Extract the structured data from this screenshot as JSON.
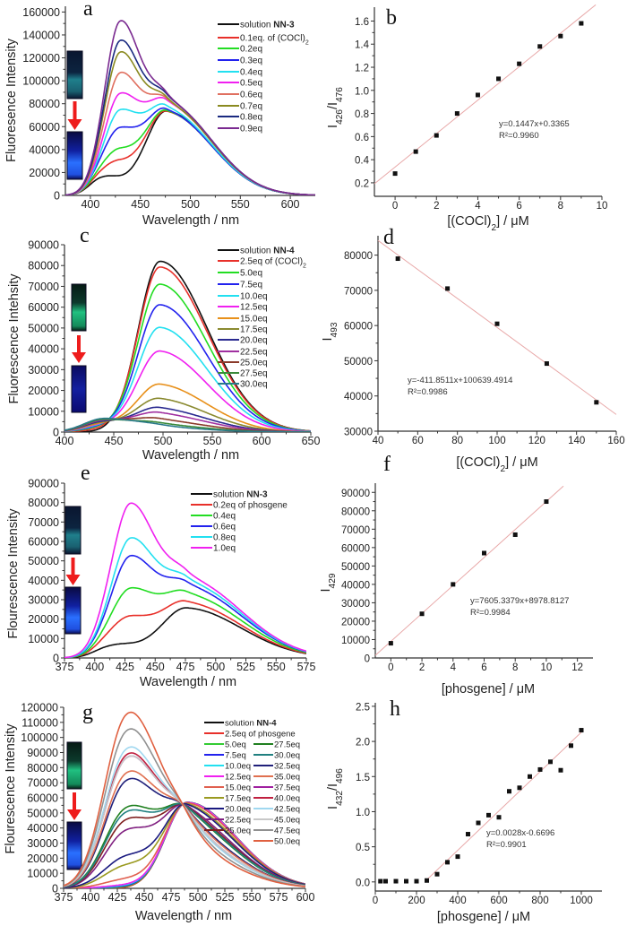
{
  "chart_data": [
    {
      "id": "a",
      "panel_label": "a",
      "type": "line",
      "xlabel": [
        {
          "t": "Wavelength / nm"
        }
      ],
      "ylabel": [
        {
          "t": "Fluoresence Intensity"
        }
      ],
      "xlim": [
        375,
        625
      ],
      "ylim": [
        0,
        165000
      ],
      "xticks": [
        "400",
        "450",
        "500",
        "550",
        "600"
      ],
      "yticks": [
        "0",
        "20000",
        "40000",
        "60000",
        "80000",
        "100000",
        "120000",
        "140000",
        "160000"
      ],
      "basis": [
        {
          "center": 430,
          "sigma_left": 15,
          "sigma_right": 20
        },
        {
          "center": 476,
          "sigma_left": 20,
          "sigma_right": 45
        },
        {
          "center": 410,
          "sigma_left": 12,
          "sigma_right": 14
        }
      ],
      "series": [
        {
          "name": "solution ",
          "bold": "NN-3",
          "color": "#111111",
          "weights": [
            8000,
            73000,
            12000
          ]
        },
        {
          "name": "0.1eq. of (COCl)",
          "sub": "2",
          "color": "#e8302a",
          "weights": [
            22000,
            72000,
            12000
          ]
        },
        {
          "name": "0.2eq",
          "color": "#22dd22",
          "weights": [
            32000,
            72000,
            12000
          ]
        },
        {
          "name": "0.3eq",
          "color": "#2222ee",
          "weights": [
            50000,
            72000,
            12000
          ]
        },
        {
          "name": "0.4eq",
          "color": "#22e0f0",
          "weights": [
            66000,
            74000,
            10000
          ]
        },
        {
          "name": "0.5eq",
          "color": "#f020f0",
          "weights": [
            80000,
            78000,
            10000
          ]
        },
        {
          "name": "0.6eq",
          "color": "#e07060",
          "weights": [
            98000,
            78000,
            10000
          ]
        },
        {
          "name": "0.7eq",
          "color": "#8a8a20",
          "weights": [
            116000,
            78000,
            10000
          ]
        },
        {
          "name": "0.8eq",
          "color": "#1a2a80",
          "weights": [
            126000,
            80000,
            10000
          ]
        },
        {
          "name": "0.9eq",
          "color": "#7a2a90",
          "weights": [
            143000,
            80000,
            10000
          ]
        }
      ]
    },
    {
      "id": "b",
      "panel_label": "b",
      "type": "scatter",
      "xlabel": [
        {
          "t": "[(COCl)"
        },
        {
          "t": "2",
          "sub": true
        },
        {
          "t": "] / μM"
        }
      ],
      "ylabel": [
        {
          "t": "I"
        },
        {
          "t": "426",
          "sub": true
        },
        {
          "t": "/I"
        },
        {
          "t": "476",
          "sub": true
        }
      ],
      "xlim": [
        -1,
        10
      ],
      "ylim": [
        0.083,
        1.72
      ],
      "xticks": [
        "0",
        "2",
        "4",
        "6",
        "8",
        "10"
      ],
      "yticks": [
        "0.2",
        "0.4",
        "0.6",
        "0.8",
        "1.0",
        "1.2",
        "1.4",
        "1.6"
      ],
      "x": [
        0,
        1,
        2,
        3,
        4,
        5,
        6,
        7,
        8,
        9
      ],
      "y": [
        0.28,
        0.47,
        0.61,
        0.8,
        0.96,
        1.1,
        1.23,
        1.38,
        1.47,
        1.58
      ],
      "fit": {
        "slope": 0.1447,
        "intercept": 0.3365,
        "x_range": [
          -1,
          9.7
        ]
      },
      "equation": "y=0.1447x+0.3365",
      "r2": "R²=0.9960"
    },
    {
      "id": "c",
      "panel_label": "c",
      "type": "line",
      "xlabel": [
        {
          "t": "Wavelength / nm"
        }
      ],
      "ylabel": [
        {
          "t": "Fluorescence Intehsity"
        }
      ],
      "xlim": [
        400,
        650
      ],
      "ylim": [
        0,
        90000
      ],
      "xticks": [
        "400",
        "450",
        "500",
        "550",
        "600",
        "650"
      ],
      "yticks": [
        "0",
        "10000",
        "20000",
        "30000",
        "40000",
        "50000",
        "60000",
        "70000",
        "80000",
        "90000"
      ],
      "basis": [
        {
          "center": 497,
          "sigma_left": 22,
          "sigma_right": 48
        },
        {
          "center": 440,
          "sigma_left": 20,
          "sigma_right": 35
        }
      ],
      "series": [
        {
          "name": "solution ",
          "bold": "NN-4",
          "color": "#111111",
          "weights": [
            82000,
            0
          ]
        },
        {
          "name": "2.5eq of (COCl)",
          "sub": "2",
          "color": "#e8302a",
          "weights": [
            79000,
            1000
          ]
        },
        {
          "name": "5.0eq",
          "color": "#22dd22",
          "weights": [
            70500,
            2000
          ]
        },
        {
          "name": "7.5eq",
          "color": "#2222ee",
          "weights": [
            60500,
            2500
          ]
        },
        {
          "name": "10.0eq",
          "color": "#22e0f0",
          "weights": [
            49500,
            3000
          ]
        },
        {
          "name": "12.5eq",
          "color": "#f020f0",
          "weights": [
            38000,
            3500
          ]
        },
        {
          "name": "15.0eq",
          "color": "#e8901a",
          "weights": [
            22000,
            4000
          ]
        },
        {
          "name": "17.5eq",
          "color": "#8a8a30",
          "weights": [
            15000,
            4500
          ]
        },
        {
          "name": "20.0eq",
          "color": "#2a2a90",
          "weights": [
            10500,
            5000
          ]
        },
        {
          "name": "22.5eq",
          "color": "#a030a0",
          "weights": [
            8000,
            5500
          ]
        },
        {
          "name": "25.0eq",
          "color": "#8b3a2a",
          "weights": [
            5000,
            6000
          ]
        },
        {
          "name": "27.5eq",
          "color": "#3a8a3a",
          "weights": [
            3000,
            6000
          ]
        },
        {
          "name": "30.0eq",
          "color": "#2a7a8a",
          "weights": [
            2000,
            6500
          ]
        }
      ]
    },
    {
      "id": "d",
      "panel_label": "d",
      "type": "scatter",
      "xlabel": [
        {
          "t": "[(COCl)"
        },
        {
          "t": "2",
          "sub": true
        },
        {
          "t": "] / μM"
        }
      ],
      "ylabel": [
        {
          "t": "I"
        },
        {
          "t": "493",
          "sub": true
        }
      ],
      "xlim": [
        40,
        160
      ],
      "ylim": [
        30000,
        85500
      ],
      "xticks": [
        "40",
        "60",
        "80",
        "100",
        "120",
        "140",
        "160"
      ],
      "yticks": [
        "30000",
        "40000",
        "50000",
        "60000",
        "70000",
        "80000"
      ],
      "x": [
        50,
        75,
        100,
        125,
        150
      ],
      "y": [
        79000,
        70500,
        60500,
        49200,
        38200
      ],
      "fit": {
        "slope": -411.8511,
        "intercept": 100639.4914,
        "x_range": [
          40,
          160
        ]
      },
      "equation": "y=-411.8511x+100639.4914",
      "r2": "R²=0.9986"
    },
    {
      "id": "e",
      "panel_label": "e",
      "type": "line",
      "xlabel": [
        {
          "t": "Wavelength / nm"
        }
      ],
      "ylabel": [
        {
          "t": "Flourescence Intensity"
        }
      ],
      "xlim": [
        375,
        575
      ],
      "ylim": [
        0,
        90000
      ],
      "xticks": [
        "375",
        "400",
        "425",
        "450",
        "475",
        "500",
        "525",
        "550",
        "575"
      ],
      "yticks": [
        "0",
        "10000",
        "20000",
        "30000",
        "40000",
        "50000",
        "60000",
        "70000",
        "80000",
        "90000"
      ],
      "basis": [
        {
          "center": 430,
          "sigma_left": 15,
          "sigma_right": 20
        },
        {
          "center": 476,
          "sigma_left": 20,
          "sigma_right": 45
        },
        {
          "center": 410,
          "sigma_left": 12,
          "sigma_right": 14
        }
      ],
      "series": [
        {
          "name": "solution ",
          "bold": "NN-3",
          "color": "#111111",
          "weights": [
            4500,
            25500,
            4000
          ]
        },
        {
          "name": "0.2eq of phosgene",
          "color": "#e8302a",
          "weights": [
            18000,
            28000,
            5000
          ]
        },
        {
          "name": "0.4eq",
          "color": "#22dd22",
          "weights": [
            32000,
            32000,
            5000
          ]
        },
        {
          "name": "0.6eq",
          "color": "#2222ee",
          "weights": [
            48000,
            36000,
            6000
          ]
        },
        {
          "name": "0.8eq",
          "color": "#22e0f0",
          "weights": [
            57000,
            38000,
            6000
          ]
        },
        {
          "name": "1.0eq",
          "color": "#f020f0",
          "weights": [
            74000,
            40000,
            8000
          ]
        }
      ]
    },
    {
      "id": "f",
      "panel_label": "f",
      "type": "scatter",
      "xlabel": [
        {
          "t": "[phosgene] / μM"
        }
      ],
      "ylabel": [
        {
          "t": "I"
        },
        {
          "t": "429",
          "sub": true
        }
      ],
      "xlim": [
        -1,
        13
      ],
      "ylim": [
        0,
        95000
      ],
      "xticks": [
        "0",
        "2",
        "4",
        "6",
        "8",
        "10",
        "12"
      ],
      "yticks": [
        "0",
        "10000",
        "20000",
        "30000",
        "40000",
        "50000",
        "60000",
        "70000",
        "80000",
        "90000"
      ],
      "x": [
        0,
        2,
        4,
        6,
        8,
        10
      ],
      "y": [
        8000,
        24000,
        40000,
        57000,
        67000,
        85000
      ],
      "fit": {
        "slope": 7605.3379,
        "intercept": 8978.8127,
        "x_range": [
          -1,
          11.1
        ]
      },
      "equation": "y=7605.3379x+8978.8127",
      "r2": "R²=0.9984"
    },
    {
      "id": "g",
      "panel_label": "g",
      "type": "line",
      "xlabel": [
        {
          "t": "Wavelength / nm"
        }
      ],
      "ylabel": [
        {
          "t": "Flourescence Intensity"
        }
      ],
      "xlim": [
        375,
        600
      ],
      "ylim": [
        0,
        120000
      ],
      "xticks": [
        "375",
        "400",
        "425",
        "450",
        "475",
        "500",
        "525",
        "550",
        "575",
        "600"
      ],
      "yticks": [
        "0",
        "10000",
        "20000",
        "30000",
        "40000",
        "50000",
        "60000",
        "70000",
        "80000",
        "90000",
        "100000",
        "110000",
        "120000"
      ],
      "basis": [
        {
          "center": 432,
          "sigma_left": 20,
          "sigma_right": 22
        },
        {
          "center": 465,
          "sigma_left": 20,
          "sigma_right": 25
        },
        {
          "center": 490,
          "sigma_left": 20,
          "sigma_right": 45
        }
      ],
      "series": [
        {
          "name": "solution ",
          "bold": "NN-4",
          "color": "#111111",
          "weights": [
            0,
            0,
            57000
          ]
        },
        {
          "name": "2.5eq of phosgene",
          "color": "#e8302a",
          "weights": [
            0,
            0,
            57000
          ]
        },
        {
          "name": "5.0eq",
          "color": "#33cc33",
          "weights": [
            450,
            175,
            56850
          ]
        },
        {
          "name": "7.5eq",
          "color": "#2222ee",
          "weights": [
            900,
            350,
            56700
          ]
        },
        {
          "name": "10.0eq",
          "color": "#22e0f0",
          "weights": [
            1350,
            525,
            56550
          ]
        },
        {
          "name": "12.5eq",
          "color": "#f020f0",
          "weights": [
            1800,
            700,
            56400
          ]
        },
        {
          "name": "15.0eq",
          "color": "#e06050",
          "weights": [
            5400,
            2100,
            55200
          ]
        },
        {
          "name": "17.5eq",
          "color": "#9a9a20",
          "weights": [
            13500,
            5250,
            52500
          ]
        },
        {
          "name": "20.0eq",
          "color": "#1a1a80",
          "weights": [
            18900,
            7350,
            50700
          ]
        },
        {
          "name": "22.5eq",
          "color": "#802080",
          "weights": [
            34200,
            13300,
            45600
          ]
        },
        {
          "name": "25.0eq",
          "color": "#802020",
          "weights": [
            40500,
            15750,
            43500
          ]
        },
        {
          "name": "27.5eq",
          "color": "#208020",
          "weights": [
            47700,
            18550,
            41100
          ]
        },
        {
          "name": "30.0eq",
          "color": "#208080",
          "weights": [
            45000,
            17500,
            42000
          ]
        },
        {
          "name": "32.5eq",
          "color": "#20207a",
          "weights": [
            63900,
            24850,
            35700
          ]
        },
        {
          "name": "35.0eq",
          "color": "#e07050",
          "weights": [
            68400,
            26600,
            34200
          ]
        },
        {
          "name": "37.5eq",
          "color": "#a020a0",
          "weights": [
            77400,
            30100,
            31200
          ]
        },
        {
          "name": "40.0eq",
          "color": "#c02040",
          "weights": [
            79200,
            30800,
            30600
          ]
        },
        {
          "name": "42.5eq",
          "color": "#a0d8f0",
          "weights": [
            82800,
            32200,
            29400
          ]
        },
        {
          "name": "45.0eq",
          "color": "#c8c8c8",
          "weights": [
            77400,
            30100,
            31200
          ]
        },
        {
          "name": "47.5eq",
          "color": "#909090",
          "weights": [
            93600,
            36400,
            25800
          ]
        },
        {
          "name": "50.0eq",
          "color": "#e06040",
          "weights": [
            103500,
            40250,
            22500
          ]
        }
      ]
    },
    {
      "id": "h",
      "panel_label": "h",
      "type": "scatter",
      "xlabel": [
        {
          "t": "[phosgene] / μM"
        }
      ],
      "ylabel": [
        {
          "t": "I"
        },
        {
          "t": "432",
          "sub": true
        },
        {
          "t": "/I"
        },
        {
          "t": "496",
          "sub": true
        }
      ],
      "xlim": [
        0,
        1100
      ],
      "ylim": [
        -0.13,
        2.55
      ],
      "xticks": [
        "0",
        "200",
        "400",
        "600",
        "800",
        "1000"
      ],
      "yticks": [
        "0.0",
        "0.5",
        "1.0",
        "1.5",
        "2.0",
        "2.5"
      ],
      "x": [
        25,
        50,
        100,
        150,
        200,
        250,
        300,
        350,
        400,
        450,
        500,
        550,
        600,
        650,
        700,
        750,
        800,
        850,
        900,
        950,
        1000
      ],
      "y": [
        0.01,
        0.01,
        0.01,
        0.01,
        0.01,
        0.02,
        0.11,
        0.28,
        0.36,
        0.68,
        0.84,
        0.95,
        0.92,
        1.29,
        1.34,
        1.5,
        1.6,
        1.71,
        1.59,
        1.94,
        2.16
      ],
      "fit": {
        "slope": 0.0028,
        "intercept": -0.6696,
        "x_range": [
          240,
          1000
        ]
      },
      "equation": "y=0.0028x-0.6696",
      "r2": "R²=0.9901"
    }
  ],
  "colors": {
    "fit_line": "#e8a8a8",
    "marker": "#111111",
    "arrow": "#ee1c1c"
  }
}
